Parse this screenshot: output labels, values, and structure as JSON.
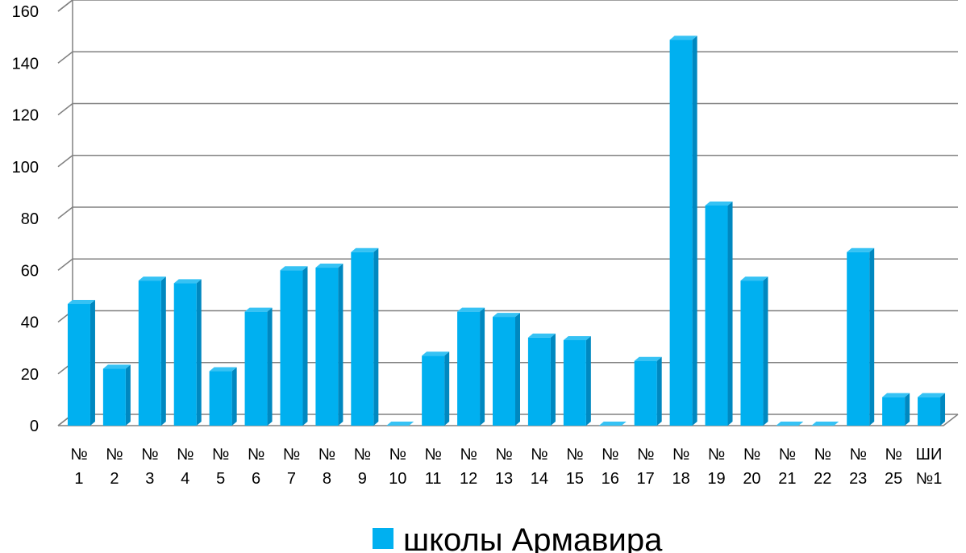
{
  "chart_data": {
    "type": "bar",
    "categories": [
      [
        "№",
        "1"
      ],
      [
        "№",
        "2"
      ],
      [
        "№",
        "3"
      ],
      [
        "№",
        "4"
      ],
      [
        "№",
        "5"
      ],
      [
        "№",
        "6"
      ],
      [
        "№",
        "7"
      ],
      [
        "№",
        "8"
      ],
      [
        "№",
        "9"
      ],
      [
        "№",
        "10"
      ],
      [
        "№",
        "11"
      ],
      [
        "№",
        "12"
      ],
      [
        "№",
        "13"
      ],
      [
        "№",
        "14"
      ],
      [
        "№",
        "15"
      ],
      [
        "№",
        "16"
      ],
      [
        "№",
        "17"
      ],
      [
        "№",
        "18"
      ],
      [
        "№",
        "19"
      ],
      [
        "№",
        "20"
      ],
      [
        "№",
        "21"
      ],
      [
        "№",
        "22"
      ],
      [
        "№",
        "23"
      ],
      [
        "№",
        "25"
      ],
      [
        "ШИ",
        "№1"
      ]
    ],
    "series": [
      {
        "name": "школы Армавира",
        "values": [
          47,
          22,
          56,
          55,
          21,
          44,
          60,
          61,
          67,
          0,
          27,
          44,
          42,
          34,
          33,
          0,
          25,
          149,
          85,
          56,
          0,
          0,
          67,
          11,
          11
        ]
      }
    ],
    "ylim": [
      0,
      160
    ],
    "yticks": [
      0,
      20,
      40,
      60,
      80,
      100,
      120,
      140,
      160
    ],
    "grid": true,
    "legend_position": "bottom",
    "colors": {
      "bar_front": "#00b0f0",
      "bar_side": "#0088c0",
      "bar_top": "#36c2f4",
      "grid": "#808080"
    }
  }
}
